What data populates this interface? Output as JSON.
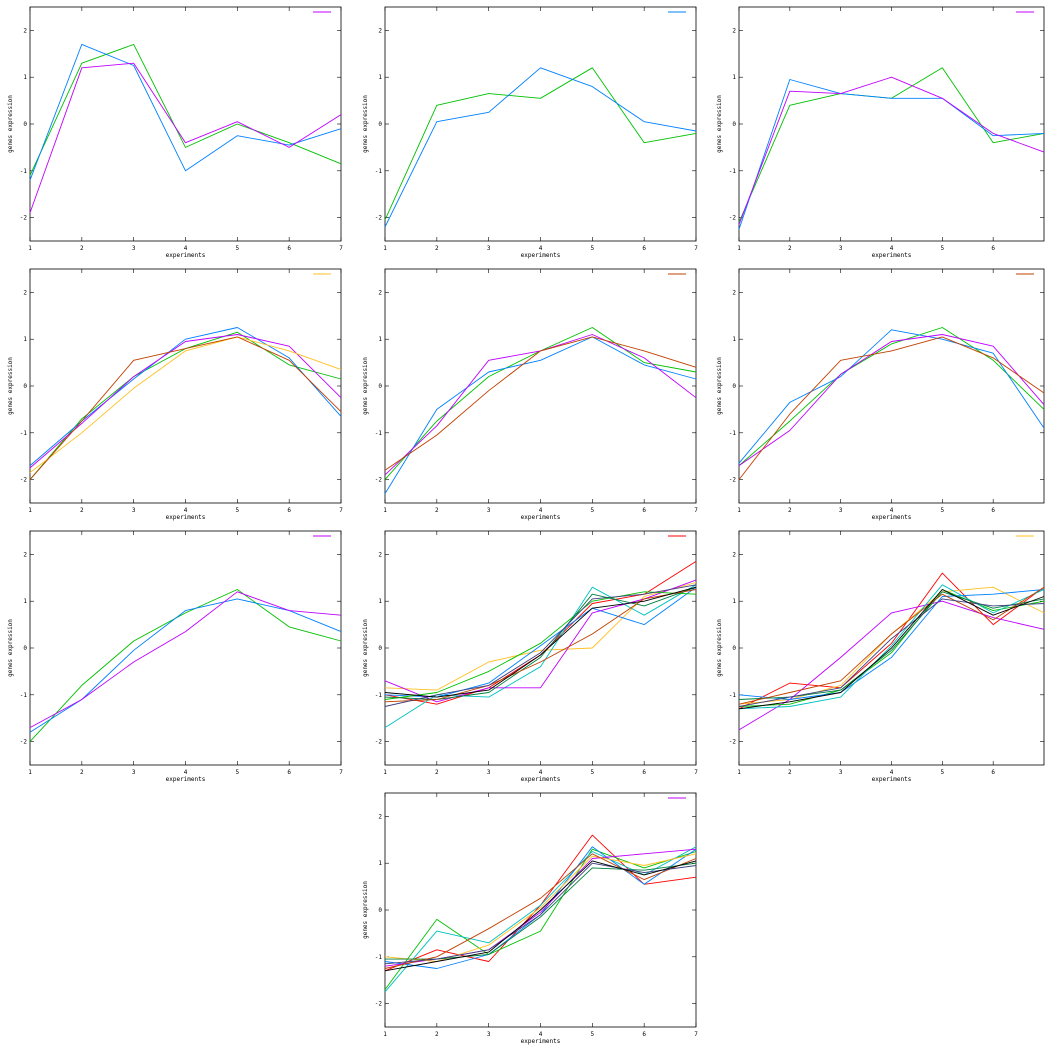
{
  "colors": {
    "green": "#00c000",
    "blue": "#0080ff",
    "magenta": "#c000ff",
    "orange": "#ffc020",
    "brown": "#c04000",
    "red": "#ff0000",
    "cyan": "#00c0c0",
    "darkgreen": "#008040",
    "navy": "#404080",
    "black": "#000000"
  },
  "chart_data": [
    {
      "type": "line",
      "panel": 1,
      "xlabel": "experiments",
      "ylabel": "genes expression",
      "x": [
        1,
        2,
        3,
        4,
        5,
        6,
        7
      ],
      "xlim": [
        1,
        7
      ],
      "ylim": [
        -2.5,
        2.5
      ],
      "x_ticks": [
        "1",
        "2",
        "3",
        "4",
        "5",
        "6",
        "7"
      ],
      "y_ticks": [
        "-2",
        "-1",
        "0",
        "1",
        "2"
      ],
      "legend_color": "magenta",
      "series": [
        {
          "color": "green",
          "values": [
            -1.1,
            1.3,
            1.7,
            -0.5,
            0.0,
            -0.4,
            -0.85
          ]
        },
        {
          "color": "blue",
          "values": [
            -1.2,
            1.7,
            1.25,
            -1.0,
            -0.25,
            -0.45,
            -0.1
          ]
        },
        {
          "color": "magenta",
          "values": [
            -1.9,
            1.2,
            1.3,
            -0.4,
            0.05,
            -0.5,
            0.2
          ]
        }
      ]
    },
    {
      "type": "line",
      "panel": 2,
      "xlabel": "experiments",
      "ylabel": "genes expression",
      "x": [
        1,
        2,
        3,
        4,
        5,
        6,
        7
      ],
      "xlim": [
        1,
        7
      ],
      "ylim": [
        -2.5,
        2.5
      ],
      "x_ticks": [
        "1",
        "2",
        "3",
        "4",
        "5",
        "6",
        "7"
      ],
      "y_ticks": [
        "-2",
        "-1",
        "0",
        "1",
        "2"
      ],
      "legend_color": "blue",
      "series": [
        {
          "color": "green",
          "values": [
            -2.05,
            0.4,
            0.65,
            0.55,
            1.2,
            -0.4,
            -0.2
          ]
        },
        {
          "color": "blue",
          "values": [
            -2.2,
            0.05,
            0.25,
            1.2,
            0.8,
            0.05,
            -0.15
          ]
        }
      ]
    },
    {
      "type": "line",
      "panel": 3,
      "xlabel": "experiments",
      "ylabel": "genes expression",
      "x": [
        1,
        2,
        3,
        4,
        5,
        6,
        7
      ],
      "xlim": [
        1,
        7
      ],
      "ylim": [
        -2.5,
        2.5
      ],
      "x_ticks": [
        "1",
        "2",
        "3",
        "4",
        "5",
        "6"
      ],
      "y_ticks": [
        "-2",
        "-1",
        "0",
        "1",
        "2"
      ],
      "legend_color": "magenta",
      "series": [
        {
          "color": "green",
          "values": [
            -2.1,
            0.4,
            0.65,
            0.55,
            1.2,
            -0.4,
            -0.2
          ]
        },
        {
          "color": "blue",
          "values": [
            -2.25,
            0.95,
            0.65,
            0.55,
            0.55,
            -0.25,
            -0.2
          ]
        },
        {
          "color": "magenta",
          "values": [
            -2.15,
            0.7,
            0.65,
            1.0,
            0.55,
            -0.2,
            -0.6
          ]
        }
      ]
    },
    {
      "type": "line",
      "panel": 4,
      "xlabel": "experiments",
      "ylabel": "genes expression",
      "x": [
        1,
        2,
        3,
        4,
        5,
        6,
        7
      ],
      "xlim": [
        1,
        7
      ],
      "ylim": [
        -2.5,
        2.5
      ],
      "x_ticks": [
        "1",
        "2",
        "3",
        "4",
        "5",
        "6",
        "7"
      ],
      "y_ticks": [
        "-2",
        "-1",
        "0",
        "1",
        "2"
      ],
      "legend_color": "orange",
      "series": [
        {
          "color": "green",
          "values": [
            -2.0,
            -0.7,
            0.2,
            0.8,
            1.15,
            0.45,
            0.15
          ]
        },
        {
          "color": "blue",
          "values": [
            -1.7,
            -0.75,
            0.15,
            1.0,
            1.25,
            0.6,
            -0.65
          ]
        },
        {
          "color": "magenta",
          "values": [
            -1.75,
            -0.8,
            0.2,
            0.95,
            1.1,
            0.85,
            -0.25
          ]
        },
        {
          "color": "orange",
          "values": [
            -1.85,
            -1.0,
            -0.05,
            0.75,
            1.05,
            0.75,
            0.35
          ]
        },
        {
          "color": "brown",
          "values": [
            -2.0,
            -0.75,
            0.55,
            0.8,
            1.05,
            0.55,
            -0.55
          ]
        }
      ]
    },
    {
      "type": "line",
      "panel": 5,
      "xlabel": "experiments",
      "ylabel": "genes expression",
      "x": [
        1,
        2,
        3,
        4,
        5,
        6,
        7
      ],
      "xlim": [
        1,
        7
      ],
      "ylim": [
        -2.5,
        2.5
      ],
      "x_ticks": [
        "1",
        "2",
        "3",
        "4",
        "5",
        "6",
        "7"
      ],
      "y_ticks": [
        "-2",
        "-1",
        "0",
        "1",
        "2"
      ],
      "legend_color": "brown",
      "series": [
        {
          "color": "green",
          "values": [
            -2.0,
            -0.75,
            0.2,
            0.75,
            1.25,
            0.5,
            0.3
          ]
        },
        {
          "color": "blue",
          "values": [
            -2.3,
            -0.5,
            0.3,
            0.55,
            1.05,
            0.45,
            0.15
          ]
        },
        {
          "color": "magenta",
          "values": [
            -1.9,
            -0.85,
            0.55,
            0.75,
            1.1,
            0.6,
            -0.25
          ]
        },
        {
          "color": "brown",
          "values": [
            -1.8,
            -1.05,
            -0.1,
            0.75,
            1.05,
            0.75,
            0.4
          ]
        }
      ]
    },
    {
      "type": "line",
      "panel": 6,
      "xlabel": "experiments",
      "ylabel": "genes expression",
      "x": [
        1,
        2,
        3,
        4,
        5,
        6,
        7
      ],
      "xlim": [
        1,
        7
      ],
      "ylim": [
        -2.5,
        2.5
      ],
      "x_ticks": [
        "1",
        "2",
        "3",
        "4",
        "5",
        "6"
      ],
      "y_ticks": [
        "-2",
        "-1",
        "0",
        "1",
        "2"
      ],
      "legend_color": "brown",
      "series": [
        {
          "color": "green",
          "values": [
            -1.7,
            -0.75,
            0.25,
            0.9,
            1.25,
            0.55,
            -0.5
          ]
        },
        {
          "color": "blue",
          "values": [
            -1.65,
            -0.35,
            0.2,
            1.2,
            1.0,
            0.7,
            -0.9
          ]
        },
        {
          "color": "magenta",
          "values": [
            -1.7,
            -0.95,
            0.25,
            0.95,
            1.1,
            0.85,
            -0.4
          ]
        },
        {
          "color": "brown",
          "values": [
            -2.0,
            -0.6,
            0.55,
            0.75,
            1.05,
            0.6,
            -0.15
          ]
        }
      ]
    },
    {
      "type": "line",
      "panel": 7,
      "xlabel": "experiments",
      "ylabel": "genes expression",
      "x": [
        1,
        2,
        3,
        4,
        5,
        6,
        7
      ],
      "xlim": [
        1,
        7
      ],
      "ylim": [
        -2.5,
        2.5
      ],
      "x_ticks": [
        "1",
        "2",
        "3",
        "4",
        "5",
        "6",
        "7"
      ],
      "y_ticks": [
        "-2",
        "-1",
        "0",
        "1",
        "2"
      ],
      "legend_color": "magenta",
      "series": [
        {
          "color": "green",
          "values": [
            -2.0,
            -0.8,
            0.15,
            0.75,
            1.25,
            0.45,
            0.15
          ]
        },
        {
          "color": "blue",
          "values": [
            -1.8,
            -1.1,
            -0.05,
            0.8,
            1.05,
            0.8,
            0.35
          ]
        },
        {
          "color": "magenta",
          "values": [
            -1.7,
            -1.1,
            -0.3,
            0.35,
            1.2,
            0.8,
            0.7
          ]
        }
      ]
    },
    {
      "type": "line",
      "panel": 8,
      "xlabel": "experiments",
      "ylabel": "genes expression",
      "x": [
        1,
        2,
        3,
        4,
        5,
        6,
        7
      ],
      "xlim": [
        1,
        7
      ],
      "ylim": [
        -2.5,
        2.5
      ],
      "x_ticks": [
        "1",
        "2",
        "3",
        "4",
        "5",
        "6",
        "7"
      ],
      "y_ticks": [
        "-2",
        "-1",
        "0",
        "1",
        "2"
      ],
      "legend_color": "red",
      "series": [
        {
          "color": "red",
          "values": [
            -1.0,
            -1.2,
            -0.85,
            -0.15,
            0.95,
            1.15,
            1.85
          ]
        },
        {
          "color": "orange",
          "values": [
            -0.85,
            -0.9,
            -0.3,
            -0.05,
            0.0,
            1.1,
            1.4
          ]
        },
        {
          "color": "cyan",
          "values": [
            -1.7,
            -1.0,
            -1.05,
            -0.4,
            1.3,
            0.7,
            1.35
          ]
        },
        {
          "color": "blue",
          "values": [
            -1.0,
            -1.05,
            -0.75,
            0.05,
            0.85,
            0.5,
            1.3
          ]
        },
        {
          "color": "magenta",
          "values": [
            -0.7,
            -1.15,
            -0.85,
            -0.85,
            0.75,
            1.05,
            1.45
          ]
        },
        {
          "color": "green",
          "values": [
            -1.1,
            -0.95,
            -0.5,
            0.1,
            1.0,
            1.2,
            1.15
          ]
        },
        {
          "color": "darkgreen",
          "values": [
            -1.05,
            -1.1,
            -0.95,
            -0.2,
            1.15,
            0.9,
            1.3
          ]
        },
        {
          "color": "brown",
          "values": [
            -1.15,
            -1.1,
            -0.8,
            -0.3,
            0.3,
            1.05,
            1.25
          ]
        },
        {
          "color": "navy",
          "values": [
            -1.25,
            -1.0,
            -0.8,
            -0.1,
            1.05,
            1.15,
            1.35
          ]
        },
        {
          "color": "black",
          "values": [
            -0.95,
            -1.05,
            -0.9,
            -0.15,
            0.85,
            1.0,
            1.3
          ]
        }
      ]
    },
    {
      "type": "line",
      "panel": 9,
      "xlabel": "experiments",
      "ylabel": "genes expression",
      "x": [
        1,
        2,
        3,
        4,
        5,
        6,
        7
      ],
      "xlim": [
        1,
        7
      ],
      "ylim": [
        -2.5,
        2.5
      ],
      "x_ticks": [
        "1",
        "2",
        "3",
        "4",
        "5",
        "6"
      ],
      "y_ticks": [
        "-2",
        "-1",
        "0",
        "1",
        "2"
      ],
      "legend_color": "orange",
      "series": [
        {
          "color": "red",
          "values": [
            -1.3,
            -0.75,
            -0.85,
            0.1,
            1.6,
            0.5,
            1.3
          ]
        },
        {
          "color": "orange",
          "values": [
            -1.2,
            -1.1,
            -0.8,
            0.3,
            1.2,
            1.3,
            0.75
          ]
        },
        {
          "color": "magenta",
          "values": [
            -1.75,
            -1.1,
            -0.2,
            0.75,
            1.0,
            0.65,
            0.4
          ]
        },
        {
          "color": "green",
          "values": [
            -1.25,
            -1.2,
            -0.9,
            -0.1,
            1.25,
            0.8,
            1.0
          ]
        },
        {
          "color": "blue",
          "values": [
            -1.0,
            -1.1,
            -0.95,
            -0.2,
            1.1,
            1.15,
            1.25
          ]
        },
        {
          "color": "cyan",
          "values": [
            -1.3,
            -1.25,
            -1.05,
            0.05,
            1.35,
            0.75,
            1.25
          ]
        },
        {
          "color": "darkgreen",
          "values": [
            -1.1,
            -1.05,
            -0.9,
            -0.05,
            1.2,
            0.85,
            1.05
          ]
        },
        {
          "color": "brown",
          "values": [
            -1.2,
            -0.95,
            -0.7,
            0.3,
            1.15,
            0.6,
            1.3
          ]
        },
        {
          "color": "navy",
          "values": [
            -1.25,
            -1.05,
            -0.85,
            0.2,
            1.05,
            0.9,
            0.95
          ]
        },
        {
          "color": "black",
          "values": [
            -1.3,
            -1.15,
            -0.95,
            0.0,
            1.25,
            0.7,
            1.1
          ]
        }
      ]
    },
    {
      "type": "line",
      "panel": 10,
      "xlabel": "experiments",
      "ylabel": "genes expression",
      "x": [
        1,
        2,
        3,
        4,
        5,
        6,
        7
      ],
      "xlim": [
        1,
        7
      ],
      "ylim": [
        -2.5,
        2.5
      ],
      "x_ticks": [
        "1",
        "2",
        "3",
        "4",
        "5",
        "6",
        "7"
      ],
      "y_ticks": [
        "-2",
        "-1",
        "0",
        "1",
        "2"
      ],
      "legend_color": "magenta",
      "series": [
        {
          "color": "red",
          "values": [
            -1.3,
            -0.85,
            -1.1,
            0.1,
            1.6,
            0.55,
            0.7
          ]
        },
        {
          "color": "green",
          "values": [
            -1.7,
            -0.2,
            -0.95,
            -0.45,
            1.3,
            0.9,
            1.25
          ]
        },
        {
          "color": "cyan",
          "values": [
            -1.75,
            -0.45,
            -0.7,
            0.1,
            1.25,
            0.75,
            1.35
          ]
        },
        {
          "color": "blue",
          "values": [
            -1.1,
            -1.25,
            -0.95,
            -0.1,
            1.35,
            0.55,
            1.3
          ]
        },
        {
          "color": "magenta",
          "values": [
            -1.2,
            -1.05,
            -0.85,
            -0.05,
            1.1,
            1.2,
            1.3
          ]
        },
        {
          "color": "orange",
          "values": [
            -1.0,
            -1.1,
            -0.75,
            0.05,
            1.15,
            0.95,
            1.2
          ]
        },
        {
          "color": "darkgreen",
          "values": [
            -1.05,
            -1.05,
            -0.95,
            -0.15,
            0.9,
            0.85,
            1.0
          ]
        },
        {
          "color": "brown",
          "values": [
            -1.25,
            -1.0,
            -0.4,
            0.25,
            1.2,
            0.65,
            1.1
          ]
        },
        {
          "color": "navy",
          "values": [
            -1.15,
            -1.05,
            -0.85,
            -0.1,
            1.0,
            0.8,
            0.95
          ]
        },
        {
          "color": "black",
          "values": [
            -1.3,
            -1.1,
            -0.9,
            0.0,
            1.05,
            0.75,
            1.05
          ]
        }
      ]
    }
  ]
}
